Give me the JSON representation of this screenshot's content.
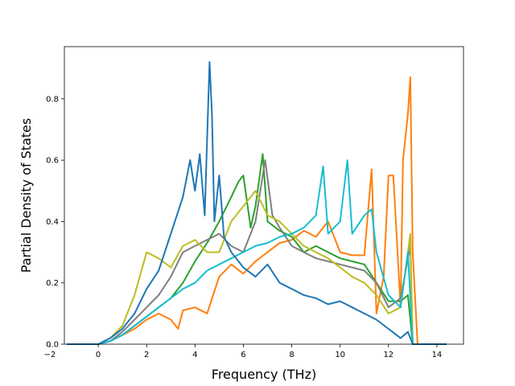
{
  "chart_data": {
    "type": "line",
    "title": "",
    "xlabel": "Frequency (THz)",
    "ylabel": "Partial Density of States",
    "xlim": [
      -1.4,
      15.1
    ],
    "ylim": [
      0,
      0.97
    ],
    "xticks": [
      -2,
      0,
      2,
      4,
      6,
      8,
      10,
      12,
      14
    ],
    "xtick_labels": [
      "−2",
      "0",
      "2",
      "4",
      "6",
      "8",
      "10",
      "12",
      "14"
    ],
    "yticks": [
      0,
      0.2,
      0.4,
      0.6,
      0.8
    ],
    "ytick_labels": [
      "0.0",
      "0.2",
      "0.4",
      "0.6",
      "0.8"
    ],
    "grid": false,
    "legend": "none",
    "series": [
      {
        "color": "#ff7f0e",
        "x": [
          -1.3,
          0.0,
          0.5,
          1.0,
          1.5,
          2.0,
          2.5,
          3.0,
          3.3,
          3.5,
          4.0,
          4.5,
          5.0,
          5.5,
          6.0,
          6.5,
          7.0,
          7.5,
          8.0,
          8.5,
          9.0,
          9.5,
          10.0,
          10.5,
          11.0,
          11.3,
          11.5,
          11.8,
          12.0,
          12.2,
          12.5,
          12.6,
          12.8,
          12.9,
          13.0,
          13.2,
          14.4
        ],
        "y": [
          0,
          0,
          0.01,
          0.03,
          0.05,
          0.08,
          0.1,
          0.08,
          0.05,
          0.11,
          0.12,
          0.1,
          0.22,
          0.26,
          0.23,
          0.27,
          0.3,
          0.33,
          0.34,
          0.37,
          0.35,
          0.4,
          0.3,
          0.29,
          0.29,
          0.57,
          0.1,
          0.22,
          0.55,
          0.55,
          0.12,
          0.6,
          0.75,
          0.87,
          0.3,
          0.0,
          0
        ]
      },
      {
        "color": "#2ca02c",
        "x": [
          -1.3,
          0.0,
          0.5,
          1.0,
          1.5,
          2.0,
          2.5,
          3.0,
          3.5,
          4.0,
          4.5,
          5.0,
          5.5,
          5.8,
          6.0,
          6.3,
          6.5,
          6.8,
          7.0,
          7.5,
          8.0,
          8.5,
          9.0,
          9.5,
          10.0,
          10.5,
          11.0,
          11.5,
          12.0,
          12.5,
          12.8,
          13.0,
          14.4
        ],
        "y": [
          0,
          0,
          0.01,
          0.03,
          0.06,
          0.09,
          0.12,
          0.15,
          0.2,
          0.27,
          0.33,
          0.4,
          0.48,
          0.53,
          0.55,
          0.38,
          0.45,
          0.62,
          0.4,
          0.37,
          0.35,
          0.3,
          0.32,
          0.3,
          0.28,
          0.27,
          0.26,
          0.2,
          0.14,
          0.14,
          0.16,
          0.0,
          0
        ]
      },
      {
        "color": "#7f7f7f",
        "x": [
          -1.3,
          0.0,
          0.5,
          1.0,
          1.5,
          2.0,
          2.5,
          3.0,
          3.5,
          4.0,
          4.5,
          5.0,
          5.5,
          6.0,
          6.5,
          6.9,
          7.2,
          7.5,
          8.0,
          8.5,
          9.0,
          9.5,
          10.0,
          10.5,
          11.0,
          11.5,
          12.0,
          12.5,
          12.9,
          13.0,
          14.4
        ],
        "y": [
          0,
          0,
          0.01,
          0.04,
          0.08,
          0.12,
          0.16,
          0.22,
          0.3,
          0.32,
          0.34,
          0.36,
          0.32,
          0.3,
          0.4,
          0.6,
          0.42,
          0.38,
          0.32,
          0.3,
          0.28,
          0.27,
          0.26,
          0.25,
          0.24,
          0.2,
          0.12,
          0.15,
          0.32,
          0.0,
          0
        ]
      },
      {
        "color": "#bcbd22",
        "x": [
          -1.3,
          0.0,
          0.5,
          1.0,
          1.5,
          2.0,
          2.5,
          3.0,
          3.5,
          4.0,
          4.5,
          5.0,
          5.5,
          6.0,
          6.5,
          7.0,
          7.5,
          8.0,
          8.5,
          9.0,
          9.5,
          10.0,
          10.5,
          11.0,
          11.5,
          12.0,
          12.5,
          12.9,
          13.0,
          14.4
        ],
        "y": [
          0,
          0,
          0.02,
          0.06,
          0.16,
          0.3,
          0.28,
          0.25,
          0.32,
          0.34,
          0.3,
          0.3,
          0.4,
          0.45,
          0.5,
          0.42,
          0.4,
          0.36,
          0.32,
          0.3,
          0.28,
          0.25,
          0.22,
          0.2,
          0.16,
          0.1,
          0.12,
          0.36,
          0.0,
          0
        ]
      },
      {
        "color": "#17becf",
        "x": [
          -1.3,
          0.0,
          0.5,
          1.0,
          1.5,
          2.0,
          2.5,
          3.0,
          3.5,
          4.0,
          4.5,
          5.0,
          5.5,
          6.0,
          6.5,
          7.0,
          7.5,
          8.0,
          8.5,
          9.0,
          9.3,
          9.5,
          10.0,
          10.3,
          10.5,
          11.0,
          11.3,
          11.5,
          12.0,
          12.5,
          12.8,
          13.0,
          14.4
        ],
        "y": [
          0,
          0,
          0.01,
          0.03,
          0.06,
          0.09,
          0.12,
          0.15,
          0.18,
          0.2,
          0.24,
          0.26,
          0.28,
          0.3,
          0.32,
          0.33,
          0.35,
          0.36,
          0.38,
          0.42,
          0.58,
          0.36,
          0.4,
          0.6,
          0.36,
          0.42,
          0.44,
          0.3,
          0.16,
          0.12,
          0.3,
          0.0,
          0
        ]
      },
      {
        "color": "#1f77b4",
        "x": [
          -1.3,
          0.0,
          0.5,
          1.0,
          1.5,
          2.0,
          2.5,
          3.0,
          3.5,
          3.8,
          4.0,
          4.2,
          4.4,
          4.6,
          4.7,
          4.8,
          5.0,
          5.2,
          5.5,
          6.0,
          6.5,
          7.0,
          7.5,
          8.0,
          8.5,
          9.0,
          9.5,
          10.0,
          10.5,
          11.0,
          11.5,
          12.0,
          12.5,
          12.8,
          13.0,
          14.4
        ],
        "y": [
          0,
          0,
          0.02,
          0.05,
          0.1,
          0.18,
          0.24,
          0.36,
          0.48,
          0.6,
          0.5,
          0.62,
          0.42,
          0.92,
          0.75,
          0.4,
          0.55,
          0.35,
          0.3,
          0.25,
          0.22,
          0.26,
          0.2,
          0.18,
          0.16,
          0.15,
          0.13,
          0.14,
          0.12,
          0.1,
          0.08,
          0.05,
          0.02,
          0.04,
          0.0,
          0
        ]
      }
    ]
  }
}
